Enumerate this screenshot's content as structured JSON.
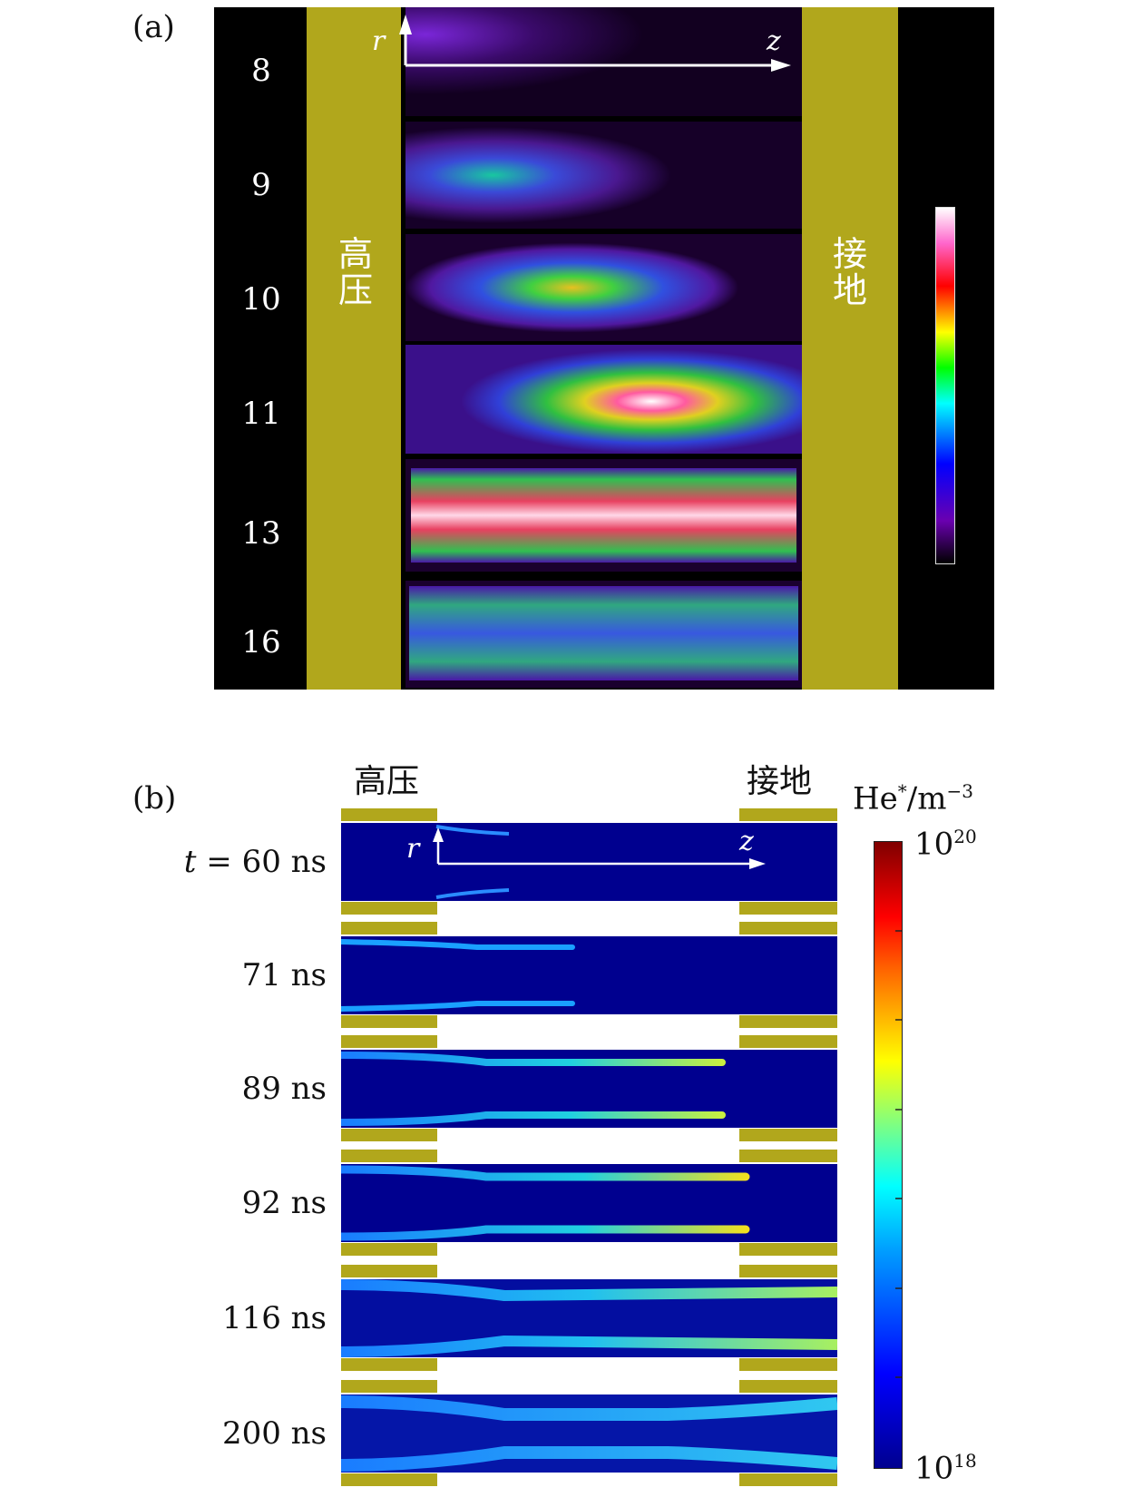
{
  "panel_a": {
    "label": "(a)",
    "times": [
      "8",
      "9",
      "10",
      "11",
      "13",
      "16"
    ],
    "electrode_left": [
      "高",
      "压"
    ],
    "electrode_right": [
      "接",
      "地"
    ],
    "axis_r": "r",
    "axis_z": "z"
  },
  "panel_b": {
    "label": "(b)",
    "electrode_left": "高压",
    "electrode_right": "接地",
    "axis_r": "r",
    "axis_z": "z",
    "rows": [
      {
        "label": "t = 60 ns"
      },
      {
        "label": "71 ns"
      },
      {
        "label": "89 ns"
      },
      {
        "label": "92 ns"
      },
      {
        "label": "116 ns"
      },
      {
        "label": "200 ns"
      }
    ],
    "colorbar": {
      "title_base": "He",
      "title_sup": "*",
      "title_unit": "/m",
      "title_exp": "−3",
      "max_base": "10",
      "max_exp": "20",
      "min_base": "10",
      "min_exp": "18"
    }
  },
  "colors": {
    "electrode": "#b1a71c",
    "sim_background": "#00008f",
    "colorbar_scale": [
      "#00008f",
      "#0000ff",
      "#00ffff",
      "#ffff00",
      "#ff0000",
      "#800000"
    ],
    "camera_scale": [
      "#000000",
      "#6a00b0",
      "#0000ff",
      "#00ffff",
      "#00ff00",
      "#ffff00",
      "#ff0000",
      "#ff66cc",
      "#ffffff"
    ]
  }
}
